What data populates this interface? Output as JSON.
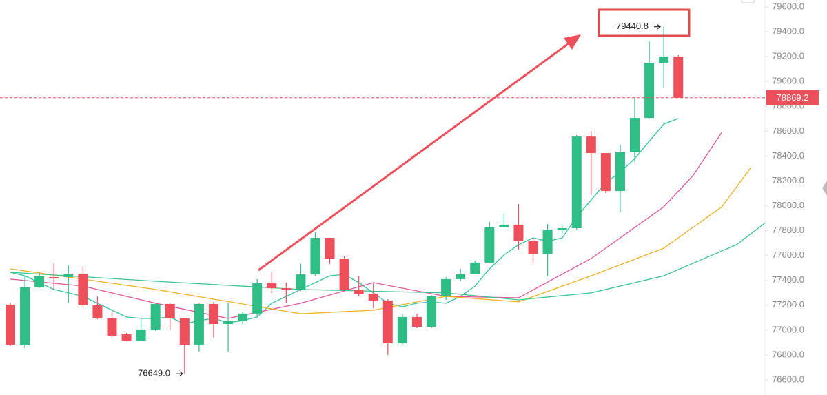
{
  "chart_data": {
    "type": "candlestick",
    "up_color": "#2ebd85",
    "down_color": "#ef4f5a",
    "ylim": [
      76600,
      79600
    ],
    "yticks": [
      {
        "value": 79600,
        "label": "79600.0"
      },
      {
        "value": 79400,
        "label": "79400.0"
      },
      {
        "value": 79200,
        "label": "79200.0"
      },
      {
        "value": 79000,
        "label": "79000.0"
      },
      {
        "value": 78800,
        "label": "78800.0"
      },
      {
        "value": 78600,
        "label": "78600.0"
      },
      {
        "value": 78400,
        "label": "78400.0"
      },
      {
        "value": 78200,
        "label": "78200.0"
      },
      {
        "value": 78000,
        "label": "78000.0"
      },
      {
        "value": 77800,
        "label": "77800.0"
      },
      {
        "value": 77600,
        "label": "77600.0"
      },
      {
        "value": 77400,
        "label": "77400.0"
      },
      {
        "value": 77200,
        "label": "77200.0"
      },
      {
        "value": 77000,
        "label": "77000.0"
      },
      {
        "value": 76800,
        "label": "76800.0"
      },
      {
        "value": 76600,
        "label": "76600.0"
      }
    ],
    "candles": {
      "open": [
        77205,
        76883,
        77343,
        77426,
        77426,
        77454,
        77199,
        77094,
        76966,
        76916,
        77005,
        77210,
        77094,
        76883,
        77210,
        77049,
        77072,
        77133,
        77376,
        77337,
        77326,
        77448,
        77742,
        77576,
        77326,
        77293,
        77238,
        76894,
        77105,
        77027,
        77271,
        77410,
        77454,
        77543,
        77826,
        77848,
        77715,
        77615,
        77809,
        77820,
        78557,
        78424,
        78119,
        78430,
        78707,
        79151,
        79201
      ],
      "high": [
        77216,
        77437,
        77465,
        77537,
        77521,
        77510,
        77271,
        77160,
        76977,
        77094,
        77216,
        77216,
        77094,
        77216,
        77227,
        77216,
        77149,
        77410,
        77465,
        77382,
        77532,
        77787,
        77742,
        77593,
        77437,
        77382,
        77249,
        77132,
        77132,
        77282,
        77426,
        77493,
        77559,
        77870,
        77937,
        78014,
        77742,
        77853,
        77853,
        78569,
        78602,
        78424,
        78491,
        78874,
        79323,
        79440.8,
        79212
      ],
      "low": [
        76872,
        76855,
        77338,
        77327,
        77216,
        77188,
        77088,
        76938,
        76911,
        76916,
        76994,
        77005,
        76649,
        76828,
        76938,
        76828,
        77049,
        77105,
        77299,
        77216,
        77315,
        77437,
        77532,
        77315,
        77271,
        77177,
        76800,
        76883,
        77016,
        77016,
        77243,
        77393,
        77448,
        77537,
        77826,
        77648,
        77537,
        77437,
        77770,
        77809,
        78086,
        78103,
        77948,
        78352,
        78702,
        78946,
        78869.2
      ],
      "close": [
        76883,
        77343,
        77437,
        77420,
        77454,
        77199,
        77094,
        76955,
        76916,
        77005,
        77210,
        77094,
        76883,
        77210,
        77049,
        77077,
        77133,
        77376,
        77337,
        77326,
        77448,
        77742,
        77576,
        77326,
        77293,
        77238,
        76894,
        77105,
        77027,
        77271,
        77410,
        77454,
        77543,
        77826,
        77848,
        77715,
        77615,
        77809,
        77820,
        78557,
        78424,
        78119,
        78430,
        78707,
        79151,
        79201,
        78869.2
      ]
    },
    "ma_lines": [
      {
        "color": "#2ec4a0",
        "x": [
          0,
          1,
          2,
          3,
          4,
          5,
          6,
          7,
          8,
          9,
          10,
          11,
          12,
          13,
          14,
          15,
          16,
          17,
          18,
          19,
          20,
          21,
          22,
          23,
          24,
          25,
          26,
          27,
          28,
          29,
          30,
          31,
          32,
          33,
          34,
          35,
          36,
          37,
          38,
          39,
          40,
          41,
          42,
          43,
          44,
          45,
          46
        ],
        "values": [
          77465,
          77437,
          77382,
          77327,
          77299,
          77271,
          77216,
          77160,
          77105,
          77094,
          77094,
          77105,
          77049,
          77077,
          77094,
          77060,
          77077,
          77105,
          77216,
          77271,
          77327,
          77382,
          77437,
          77448,
          77382,
          77299,
          77216,
          77188,
          77216,
          77227,
          77216,
          77271,
          77354,
          77493,
          77604,
          77687,
          77742,
          77715,
          77742,
          77909,
          78047,
          78186,
          78269,
          78380,
          78519,
          78657,
          78702
        ]
      },
      {
        "color": "#e0559b",
        "x": [
          0,
          5,
          10,
          15,
          20,
          25,
          30,
          35,
          40,
          45,
          47,
          49
        ],
        "values": [
          77410,
          77354,
          77216,
          77094,
          77216,
          77382,
          77271,
          77260,
          77576,
          77992,
          78241,
          78591
        ]
      },
      {
        "color": "#f0b020",
        "x": [
          0,
          10,
          20,
          25,
          30,
          35,
          40,
          45,
          49,
          51
        ],
        "values": [
          77493,
          77327,
          77132,
          77160,
          77271,
          77227,
          77437,
          77659,
          77992,
          78308
        ]
      },
      {
        "color": "#3bc48f",
        "x": [
          0,
          10,
          20,
          30,
          35,
          40,
          45,
          50,
          52
        ],
        "values": [
          77465,
          77393,
          77327,
          77299,
          77243,
          77299,
          77437,
          77687,
          77864
        ]
      }
    ],
    "last_price": 78869.2,
    "high_label": {
      "value": 79440.8,
      "label": "79440.8"
    },
    "low_label": {
      "value": 76649,
      "label": "76649.0"
    }
  }
}
